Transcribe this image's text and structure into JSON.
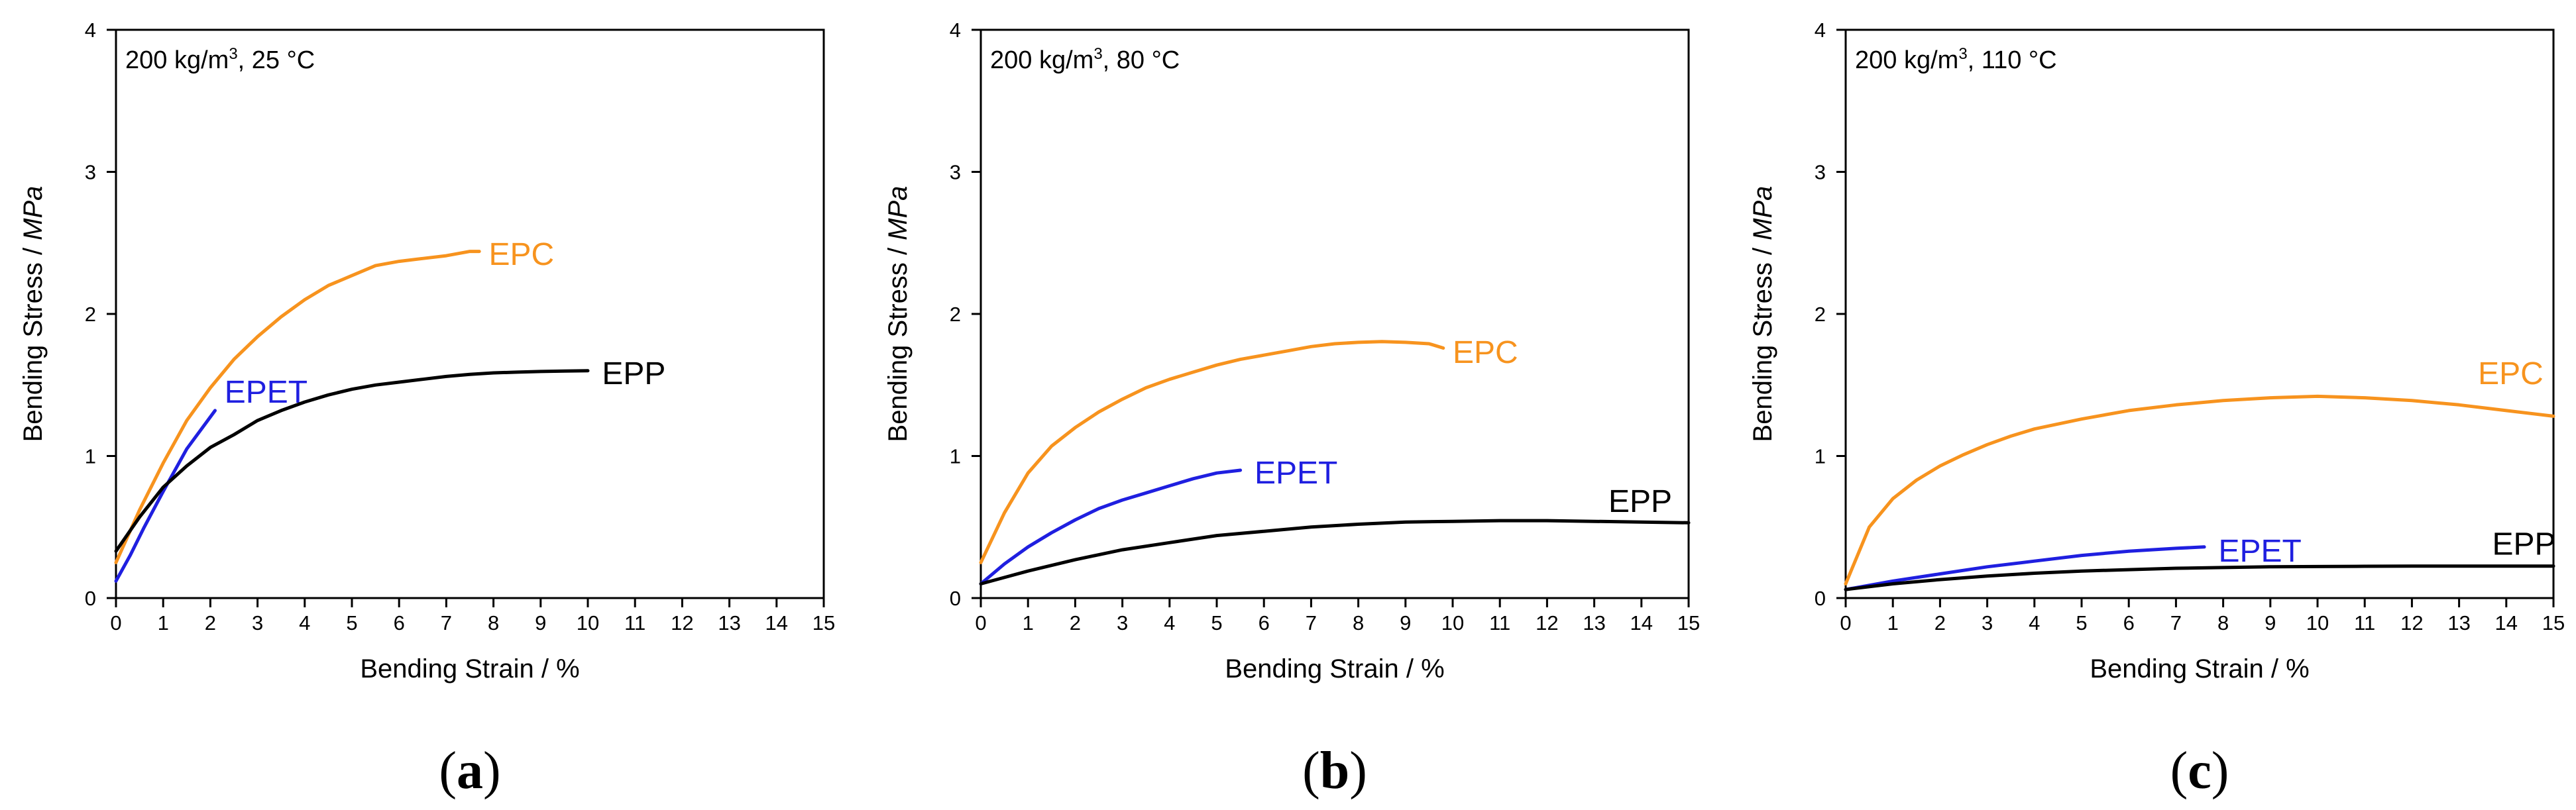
{
  "chart_data": [
    {
      "type": "line",
      "panel_label": "a",
      "condition": "200 kg/m³, 25 °C",
      "condition_main": "200 kg/m",
      "condition_sup": "3",
      "condition_tail": ", 25 °C",
      "xlabel": "Bending Strain  /  %",
      "ylabel_text": "Bending Stress  /  ",
      "ylabel_unit": "MPa",
      "xlim": [
        0,
        15
      ],
      "ylim": [
        0,
        4
      ],
      "xticks": [
        "0",
        "1",
        "2",
        "3",
        "4",
        "5",
        "6",
        "7",
        "8",
        "9",
        "10",
        "11",
        "12",
        "13",
        "14",
        "15"
      ],
      "yticks": [
        "0",
        "1",
        "2",
        "3",
        "4"
      ],
      "series": [
        {
          "name": "EPC",
          "color": "#f7931e",
          "x": [
            0,
            0.5,
            1,
            1.5,
            2,
            2.5,
            3,
            3.5,
            4,
            4.5,
            5,
            5.5,
            6,
            6.5,
            7,
            7.5,
            7.7
          ],
          "y": [
            0.25,
            0.62,
            0.95,
            1.25,
            1.48,
            1.68,
            1.84,
            1.98,
            2.1,
            2.2,
            2.27,
            2.34,
            2.37,
            2.39,
            2.41,
            2.44,
            2.44
          ],
          "label_at": [
            7.9,
            2.42
          ]
        },
        {
          "name": "EPET",
          "color": "#1f1fe0",
          "x": [
            0,
            0.3,
            0.6,
            1,
            1.5,
            2.1
          ],
          "y": [
            0.12,
            0.3,
            0.5,
            0.75,
            1.05,
            1.32
          ],
          "label_at": [
            2.3,
            1.45
          ]
        },
        {
          "name": "EPP",
          "color": "#000000",
          "x": [
            0,
            0.5,
            1,
            1.5,
            2,
            2.5,
            3,
            3.5,
            4,
            4.5,
            5,
            5.5,
            6,
            6.5,
            7,
            7.5,
            8,
            8.5,
            9,
            9.5,
            10
          ],
          "y": [
            0.33,
            0.57,
            0.78,
            0.93,
            1.06,
            1.15,
            1.25,
            1.32,
            1.38,
            1.43,
            1.47,
            1.5,
            1.52,
            1.54,
            1.56,
            1.575,
            1.585,
            1.59,
            1.595,
            1.598,
            1.6
          ],
          "label_at": [
            10.3,
            1.58
          ]
        }
      ]
    },
    {
      "type": "line",
      "panel_label": "b",
      "condition": "200 kg/m³, 80 °C",
      "condition_main": "200 kg/m",
      "condition_sup": "3",
      "condition_tail": ", 80 °C",
      "xlabel": "Bending Strain  /  %",
      "ylabel_text": "Bending Stress  /  ",
      "ylabel_unit": "MPa",
      "xlim": [
        0,
        15
      ],
      "ylim": [
        0,
        4
      ],
      "xticks": [
        "0",
        "1",
        "2",
        "3",
        "4",
        "5",
        "6",
        "7",
        "8",
        "9",
        "10",
        "11",
        "12",
        "13",
        "14",
        "15"
      ],
      "yticks": [
        "0",
        "1",
        "2",
        "3",
        "4"
      ],
      "series": [
        {
          "name": "EPC",
          "color": "#f7931e",
          "x": [
            0,
            0.5,
            1,
            1.5,
            2,
            2.5,
            3,
            3.5,
            4,
            4.5,
            5,
            5.5,
            6,
            6.5,
            7,
            7.5,
            8,
            8.5,
            9,
            9.5,
            9.8
          ],
          "y": [
            0.25,
            0.6,
            0.88,
            1.07,
            1.2,
            1.31,
            1.4,
            1.48,
            1.54,
            1.59,
            1.64,
            1.68,
            1.71,
            1.74,
            1.77,
            1.79,
            1.8,
            1.805,
            1.8,
            1.79,
            1.76
          ],
          "label_at": [
            10.0,
            1.73
          ]
        },
        {
          "name": "EPET",
          "color": "#1f1fe0",
          "x": [
            0,
            0.5,
            1,
            1.5,
            2,
            2.5,
            3,
            3.5,
            4,
            4.5,
            5,
            5.5
          ],
          "y": [
            0.1,
            0.24,
            0.36,
            0.46,
            0.55,
            0.63,
            0.69,
            0.74,
            0.79,
            0.84,
            0.88,
            0.9
          ],
          "label_at": [
            5.8,
            0.88
          ]
        },
        {
          "name": "EPP",
          "color": "#000000",
          "x": [
            0,
            1,
            2,
            3,
            4,
            5,
            6,
            7,
            8,
            9,
            10,
            11,
            12,
            13,
            14,
            15
          ],
          "y": [
            0.1,
            0.19,
            0.27,
            0.34,
            0.39,
            0.44,
            0.47,
            0.5,
            0.52,
            0.535,
            0.54,
            0.545,
            0.545,
            0.54,
            0.535,
            0.53
          ],
          "label_at": [
            13.3,
            0.68
          ]
        }
      ]
    },
    {
      "type": "line",
      "panel_label": "c",
      "condition": "200 kg/m³, 110 °C",
      "condition_main": "200 kg/m",
      "condition_sup": "3",
      "condition_tail": ", 110 °C",
      "xlabel": "Bending Strain  /  %",
      "ylabel_text": "Bending Stress  /  ",
      "ylabel_unit": "MPa",
      "xlim": [
        0,
        15
      ],
      "ylim": [
        0,
        4
      ],
      "xticks": [
        "0",
        "1",
        "2",
        "3",
        "4",
        "5",
        "6",
        "7",
        "8",
        "9",
        "10",
        "11",
        "12",
        "13",
        "14",
        "15"
      ],
      "yticks": [
        "0",
        "1",
        "2",
        "3",
        "4"
      ],
      "series": [
        {
          "name": "EPC",
          "color": "#f7931e",
          "x": [
            0,
            0.5,
            1,
            1.5,
            2,
            2.5,
            3,
            3.5,
            4,
            5,
            6,
            7,
            8,
            9,
            10,
            11,
            12,
            13,
            14,
            15
          ],
          "y": [
            0.1,
            0.5,
            0.7,
            0.83,
            0.93,
            1.01,
            1.08,
            1.14,
            1.19,
            1.26,
            1.32,
            1.36,
            1.39,
            1.41,
            1.42,
            1.41,
            1.39,
            1.36,
            1.32,
            1.28
          ],
          "label_at": [
            13.4,
            1.58
          ]
        },
        {
          "name": "EPET",
          "color": "#1f1fe0",
          "x": [
            0,
            1,
            2,
            3,
            4,
            5,
            6,
            7,
            7.6
          ],
          "y": [
            0.06,
            0.12,
            0.17,
            0.22,
            0.26,
            0.3,
            0.33,
            0.35,
            0.36
          ],
          "label_at": [
            7.9,
            0.33
          ]
        },
        {
          "name": "EPP",
          "color": "#000000",
          "x": [
            0,
            1,
            2,
            3,
            4,
            5,
            6,
            7,
            8,
            9,
            10,
            11,
            12,
            13,
            14,
            15
          ],
          "y": [
            0.06,
            0.1,
            0.13,
            0.155,
            0.175,
            0.19,
            0.2,
            0.21,
            0.215,
            0.22,
            0.222,
            0.224,
            0.225,
            0.225,
            0.225,
            0.225
          ],
          "label_at": [
            13.7,
            0.38
          ]
        }
      ]
    }
  ]
}
